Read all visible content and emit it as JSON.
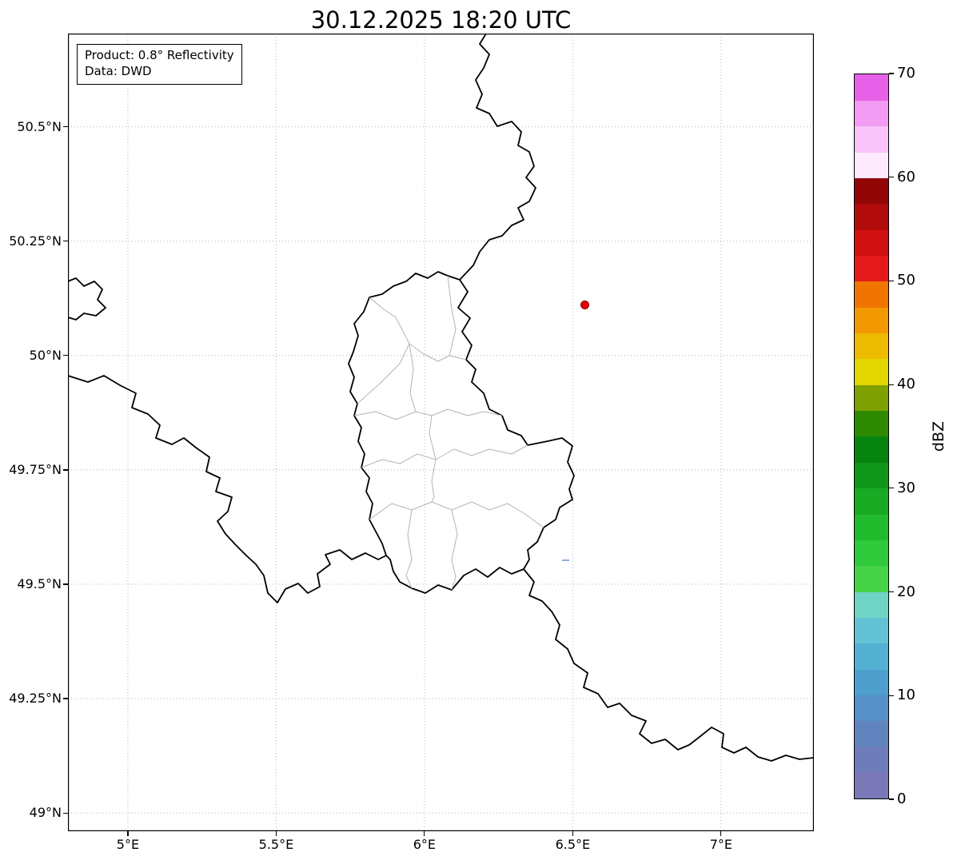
{
  "title": "30.12.2025 18:20 UTC",
  "annotation": {
    "line1": "Product: 0.8° Reflectivity",
    "line2": "Data: DWD"
  },
  "axes": {
    "x_ticks": [
      {
        "value": 5.0,
        "label": "5°E"
      },
      {
        "value": 5.5,
        "label": "5.5°E"
      },
      {
        "value": 6.0,
        "label": "6°E"
      },
      {
        "value": 6.5,
        "label": "6.5°E"
      },
      {
        "value": 7.0,
        "label": "7°E"
      }
    ],
    "y_ticks": [
      {
        "value": 50.5,
        "label": "50.5°N"
      },
      {
        "value": 50.25,
        "label": "50.25°N"
      },
      {
        "value": 50.0,
        "label": "50°N"
      },
      {
        "value": 49.75,
        "label": "49.75°N"
      },
      {
        "value": 49.5,
        "label": "49.5°N"
      },
      {
        "value": 49.25,
        "label": "49.25°N"
      },
      {
        "value": 49.0,
        "label": "49°N"
      }
    ],
    "lon_range": [
      4.798,
      7.313
    ],
    "lat_range": [
      48.96,
      50.704
    ]
  },
  "map": {
    "country_border_color": "#000000",
    "canton_border_color": "#b4b4b4",
    "grid_color": "#b5b5b5",
    "background": "#ffffff"
  },
  "radar_marker": {
    "lon": 6.54,
    "lat": 50.11,
    "color": "#e8000b",
    "edge_color": "#7f0000"
  },
  "echo_marker": {
    "lon": 6.475,
    "lat": 49.553,
    "color": "#8aabdd"
  },
  "colorbar": {
    "label": "dBZ",
    "min": 0,
    "max": 70,
    "ticks": [
      0,
      10,
      20,
      30,
      40,
      50,
      60,
      70
    ],
    "colors": [
      "#7a78b6",
      "#6f7cba",
      "#6184bf",
      "#5590c6",
      "#4e9fcc",
      "#55b1d2",
      "#62c3d4",
      "#70d4c4",
      "#47d348",
      "#2fc93b",
      "#23bb2e",
      "#18aa23",
      "#0f9719",
      "#078410",
      "#2e8b00",
      "#7fa000",
      "#e3d500",
      "#edbb00",
      "#f29800",
      "#ef7500",
      "#e41a1a",
      "#cf1010",
      "#b20b0b",
      "#930606",
      "#fdeafd",
      "#f8c4f9",
      "#f19bf3",
      "#e760e8"
    ]
  }
}
